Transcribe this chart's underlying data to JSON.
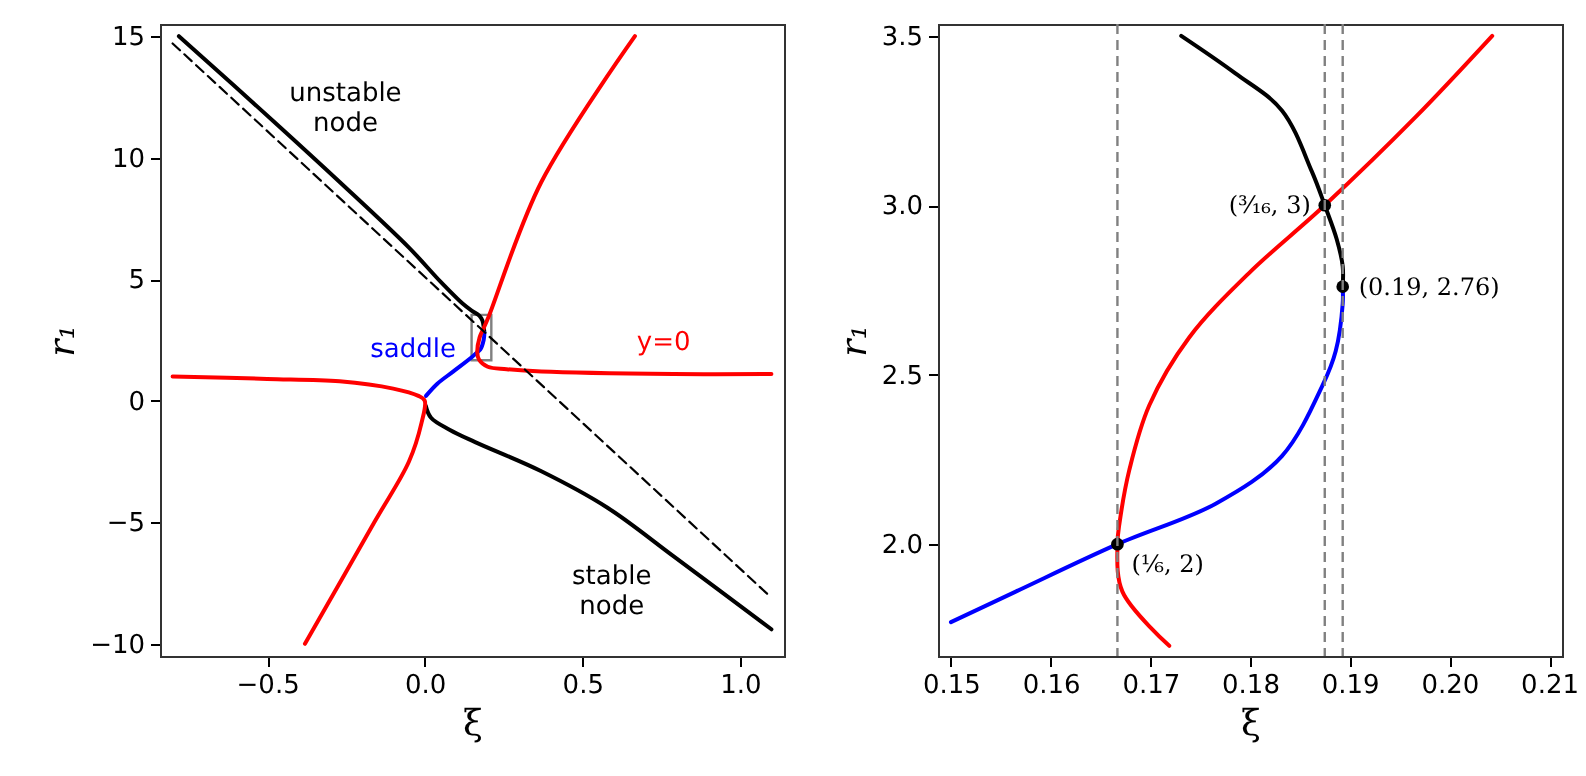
{
  "chart_data": [
    {
      "type": "line",
      "xlabel": "ξ",
      "ylabel": "r₁",
      "xlim": [
        -0.84,
        1.14
      ],
      "ylim": [
        -10.5,
        15.5
      ],
      "xticks": [
        {
          "value": -0.5,
          "label": "−0.5"
        },
        {
          "value": 0,
          "label": "0.0"
        },
        {
          "value": 0.5,
          "label": "0.5"
        },
        {
          "value": 1,
          "label": "1.0"
        }
      ],
      "yticks": [
        {
          "value": -10,
          "label": "−10"
        },
        {
          "value": -5,
          "label": "−5"
        },
        0,
        5,
        10,
        15
      ],
      "series": [
        {
          "name": "unstable node",
          "color": "#000000",
          "x": [
            -0.78,
            -0.48,
            -0.27,
            -0.05,
            0.05,
            0.12,
            0.15,
            0.173,
            0.183,
            0.1875,
            0.1893
          ],
          "values": [
            15.0,
            11.5,
            9.0,
            6.3,
            4.9,
            4.0,
            3.7,
            3.5,
            3.3,
            3.0,
            2.8
          ]
        },
        {
          "name": "saddle",
          "color": "#0000ff",
          "x": [
            0.1893,
            0.187,
            0.176,
            0.1667,
            0.15,
            0.09,
            0.04,
            0.004
          ],
          "values": [
            2.8,
            2.5,
            2.1,
            2.0,
            1.8,
            1.2,
            0.7,
            0.2
          ]
        },
        {
          "name": "stable node",
          "color": "#000000",
          "x": [
            0.003,
            0.02,
            0.08,
            0.16,
            0.37,
            0.58,
            0.79,
            1.1
          ],
          "values": [
            -0.2,
            -0.7,
            -1.2,
            -1.7,
            -2.9,
            -4.4,
            -6.4,
            -9.4
          ]
        },
        {
          "color": "#ff0000",
          "x": [
            -0.8,
            -0.5,
            -0.27,
            -0.1,
            -0.02,
            0.0,
            -0.01,
            -0.05,
            -0.16,
            -0.38
          ],
          "values": [
            1.0,
            0.9,
            0.8,
            0.5,
            0.2,
            0.0,
            -0.9,
            -2.5,
            -5.0,
            -10.0
          ]
        },
        {
          "name": "y=0",
          "color": "#ff0000",
          "x": [
            0.667,
            0.37,
            0.204,
            0.1875,
            0.174,
            0.1667,
            0.172,
            0.2,
            0.26,
            0.37,
            0.79,
            1.1
          ],
          "values": [
            15.0,
            9.0,
            3.5,
            3.0,
            2.6,
            2.0,
            1.7,
            1.4,
            1.3,
            1.2,
            1.1,
            1.1
          ]
        },
        {
          "color": "#000000",
          "line_style": "dashed",
          "x": [
            -0.8,
            1.1
          ],
          "values": [
            14.7,
            -8.1
          ]
        }
      ]
    },
    {
      "type": "line",
      "xlabel": "ξ",
      "ylabel": "r₁",
      "xlim": [
        0.1487,
        0.2113
      ],
      "ylim": [
        1.67,
        3.535
      ],
      "xticks": [
        0.15,
        0.16,
        0.17,
        0.18,
        0.19,
        {
          "value": 0.2,
          "label": "0.20"
        },
        0.21
      ],
      "yticks": [
        {
          "value": 2,
          "label": "2.0"
        },
        2.5,
        {
          "value": 3,
          "label": "3.0"
        },
        3.5
      ],
      "series": [
        {
          "color": "#000000",
          "x": [
            0.1731,
            0.1785,
            0.1832,
            0.1862,
            0.1875,
            0.1887,
            0.1893,
            0.1893
          ],
          "values": [
            3.5,
            3.39,
            3.28,
            3.1,
            3.0,
            2.9,
            2.82,
            2.76
          ]
        },
        {
          "color": "#0000ff",
          "x": [
            0.1893,
            0.1893,
            0.1886,
            0.1873,
            0.1832,
            0.1766,
            0.1667,
            0.1565,
            0.15
          ],
          "values": [
            2.76,
            2.71,
            2.57,
            2.47,
            2.26,
            2.12,
            2.0,
            1.86,
            1.77
          ]
        },
        {
          "color": "#ff0000",
          "x": [
            0.2043,
            0.1966,
            0.1875,
            0.1799,
            0.1739,
            0.1699,
            0.1679,
            0.1669,
            0.1667,
            0.1672,
            0.1719
          ],
          "values": [
            3.5,
            3.26,
            3.0,
            2.8,
            2.61,
            2.41,
            2.22,
            2.06,
            2.0,
            1.86,
            1.7
          ]
        },
        {
          "type": "scatter",
          "marker": "circle",
          "color": "#000000",
          "x": [
            0.1667,
            0.1875,
            0.1893
          ],
          "values": [
            2.0,
            3.0,
            2.76
          ]
        }
      ],
      "ref_lines": [
        {
          "axis": "x",
          "value": 0.1667,
          "color": "#808080",
          "line_style": "dashed"
        },
        {
          "axis": "x",
          "value": 0.1875,
          "color": "#808080",
          "line_style": "dashed"
        },
        {
          "axis": "x",
          "value": 0.1893,
          "color": "#808080",
          "line_style": "dashed"
        }
      ],
      "annotations": [
        {
          "text": "(⅙, 2)",
          "x": 0.1667,
          "y": 2.0
        },
        {
          "text": "(³⁄₁₆, 3)",
          "x": 0.1875,
          "y": 3.0
        },
        {
          "text": "(0.19, 2.76)",
          "x": 0.1893,
          "y": 2.76
        }
      ]
    }
  ]
}
